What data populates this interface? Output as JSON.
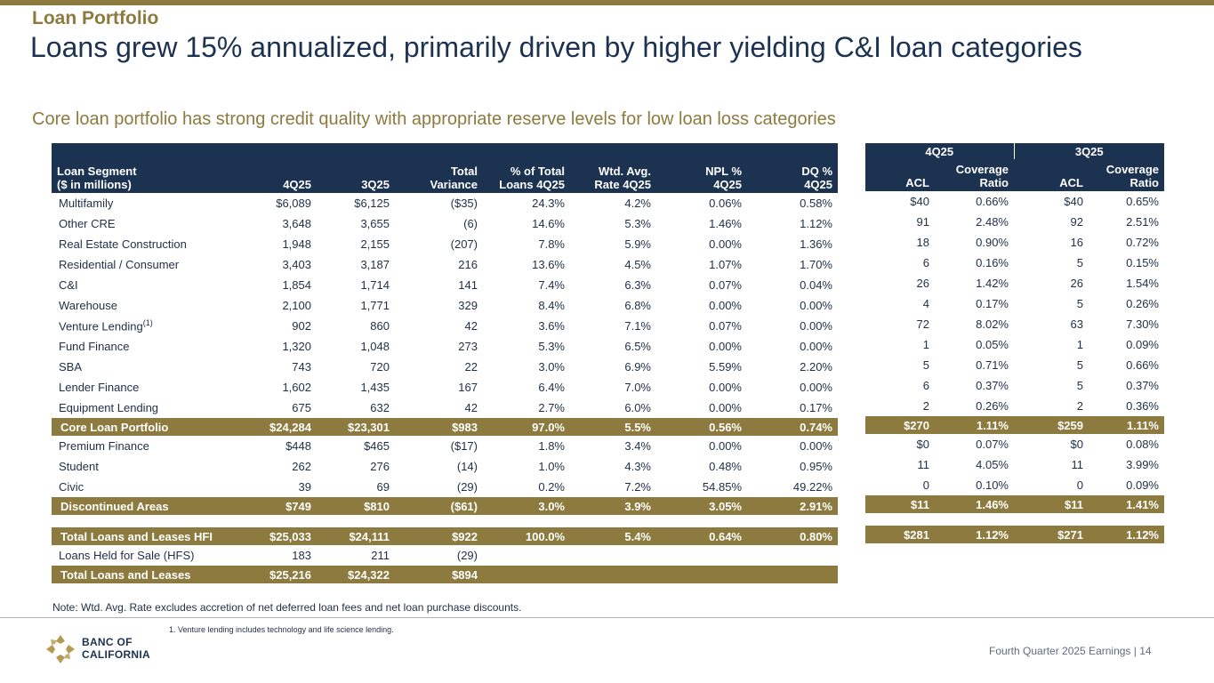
{
  "section_label": "Loan Portfolio",
  "headline": "Loans grew 15% annualized, primarily driven by higher yielding C&I loan categories",
  "subhead": "Core loan portfolio has strong credit quality with appropriate reserve levels for low loan loss categories",
  "left_table": {
    "headers": {
      "segment": [
        "Loan Segment",
        "($ in millions)"
      ],
      "q4": "4Q25",
      "q3": "3Q25",
      "variance": [
        "Total",
        "Variance"
      ],
      "pct_total": [
        "% of Total",
        "Loans 4Q25"
      ],
      "rate": [
        "Wtd. Avg.",
        "Rate 4Q25"
      ],
      "npl": [
        "NPL %",
        "4Q25"
      ],
      "dq": [
        "DQ %",
        "4Q25"
      ]
    },
    "rows": [
      {
        "segment": "Multifamily",
        "q4": "$6,089",
        "q3": "$6,125",
        "variance": "($35)",
        "pct_total": "24.3%",
        "rate": "4.2%",
        "npl": "0.06%",
        "dq": "0.58%"
      },
      {
        "segment": "Other CRE",
        "q4": "3,648",
        "q3": "3,655",
        "variance": "(6)",
        "pct_total": "14.6%",
        "rate": "5.3%",
        "npl": "1.46%",
        "dq": "1.12%"
      },
      {
        "segment": "Real Estate Construction",
        "q4": "1,948",
        "q3": "2,155",
        "variance": "(207)",
        "pct_total": "7.8%",
        "rate": "5.9%",
        "npl": "0.00%",
        "dq": "1.36%"
      },
      {
        "segment": "Residential / Consumer",
        "q4": "3,403",
        "q3": "3,187",
        "variance": "216",
        "pct_total": "13.6%",
        "rate": "4.5%",
        "npl": "1.07%",
        "dq": "1.70%"
      },
      {
        "segment": "C&I",
        "q4": "1,854",
        "q3": "1,714",
        "variance": "141",
        "pct_total": "7.4%",
        "rate": "6.3%",
        "npl": "0.07%",
        "dq": "0.04%"
      },
      {
        "segment": "Warehouse",
        "q4": "2,100",
        "q3": "1,771",
        "variance": "329",
        "pct_total": "8.4%",
        "rate": "6.8%",
        "npl": "0.00%",
        "dq": "0.00%"
      },
      {
        "segment": "Venture Lending",
        "footnote": "(1)",
        "q4": "902",
        "q3": "860",
        "variance": "42",
        "pct_total": "3.6%",
        "rate": "7.1%",
        "npl": "0.07%",
        "dq": "0.00%"
      },
      {
        "segment": "Fund Finance",
        "q4": "1,320",
        "q3": "1,048",
        "variance": "273",
        "pct_total": "5.3%",
        "rate": "6.5%",
        "npl": "0.00%",
        "dq": "0.00%"
      },
      {
        "segment": "SBA",
        "q4": "743",
        "q3": "720",
        "variance": "22",
        "pct_total": "3.0%",
        "rate": "6.9%",
        "npl": "5.59%",
        "dq": "2.20%"
      },
      {
        "segment": "Lender Finance",
        "q4": "1,602",
        "q3": "1,435",
        "variance": "167",
        "pct_total": "6.4%",
        "rate": "7.0%",
        "npl": "0.00%",
        "dq": "0.00%"
      },
      {
        "segment": "Equipment Lending",
        "q4": "675",
        "q3": "632",
        "variance": "42",
        "pct_total": "2.7%",
        "rate": "6.0%",
        "npl": "0.00%",
        "dq": "0.17%"
      },
      {
        "total": true,
        "segment": "Core Loan Portfolio",
        "q4": "$24,284",
        "q3": "$23,301",
        "variance": "$983",
        "pct_total": "97.0%",
        "rate": "5.5%",
        "npl": "0.56%",
        "dq": "0.74%"
      },
      {
        "segment": "Premium Finance",
        "q4": "$448",
        "q3": "$465",
        "variance": "($17)",
        "pct_total": "1.8%",
        "rate": "3.4%",
        "npl": "0.00%",
        "dq": "0.00%"
      },
      {
        "segment": "Student",
        "q4": "262",
        "q3": "276",
        "variance": "(14)",
        "pct_total": "1.0%",
        "rate": "4.3%",
        "npl": "0.48%",
        "dq": "0.95%"
      },
      {
        "segment": "Civic",
        "q4": "39",
        "q3": "69",
        "variance": "(29)",
        "pct_total": "0.2%",
        "rate": "7.2%",
        "npl": "54.85%",
        "dq": "49.22%"
      },
      {
        "total": true,
        "segment": "Discontinued Areas",
        "q4": "$749",
        "q3": "$810",
        "variance": "($61)",
        "pct_total": "3.0%",
        "rate": "3.9%",
        "npl": "3.05%",
        "dq": "2.91%"
      },
      {
        "gap": true
      },
      {
        "total": true,
        "segment": "Total Loans and Leases HFI",
        "q4": "$25,033",
        "q3": "$24,111",
        "variance": "$922",
        "pct_total": "100.0%",
        "rate": "5.4%",
        "npl": "0.64%",
        "dq": "0.80%"
      },
      {
        "segment": "Loans Held for Sale (HFS)",
        "q4": "183",
        "q3": "211",
        "variance": "(29)",
        "pct_total": "",
        "rate": "",
        "npl": "",
        "dq": ""
      },
      {
        "total": true,
        "segment": "Total Loans and Leases",
        "q4": "$25,216",
        "q3": "$24,322",
        "variance": "$894",
        "pct_total": "",
        "rate": "",
        "npl": "",
        "dq": ""
      }
    ]
  },
  "right_table": {
    "group_headers": [
      "4Q25",
      "3Q25"
    ],
    "headers": {
      "acl": "ACL",
      "coverage": [
        "Coverage",
        "Ratio"
      ]
    },
    "rows": [
      {
        "acl_q4": "$40",
        "cov_q4": "0.66%",
        "acl_q3": "$40",
        "cov_q3": "0.65%"
      },
      {
        "acl_q4": "91",
        "cov_q4": "2.48%",
        "acl_q3": "92",
        "cov_q3": "2.51%"
      },
      {
        "acl_q4": "18",
        "cov_q4": "0.90%",
        "acl_q3": "16",
        "cov_q3": "0.72%"
      },
      {
        "acl_q4": "6",
        "cov_q4": "0.16%",
        "acl_q3": "5",
        "cov_q3": "0.15%"
      },
      {
        "acl_q4": "26",
        "cov_q4": "1.42%",
        "acl_q3": "26",
        "cov_q3": "1.54%"
      },
      {
        "acl_q4": "4",
        "cov_q4": "0.17%",
        "acl_q3": "5",
        "cov_q3": "0.26%"
      },
      {
        "acl_q4": "72",
        "cov_q4": "8.02%",
        "acl_q3": "63",
        "cov_q3": "7.30%"
      },
      {
        "acl_q4": "1",
        "cov_q4": "0.05%",
        "acl_q3": "1",
        "cov_q3": "0.09%"
      },
      {
        "acl_q4": "5",
        "cov_q4": "0.71%",
        "acl_q3": "5",
        "cov_q3": "0.66%"
      },
      {
        "acl_q4": "6",
        "cov_q4": "0.37%",
        "acl_q3": "5",
        "cov_q3": "0.37%"
      },
      {
        "acl_q4": "2",
        "cov_q4": "0.26%",
        "acl_q3": "2",
        "cov_q3": "0.36%"
      },
      {
        "total": true,
        "acl_q4": "$270",
        "cov_q4": "1.11%",
        "acl_q3": "$259",
        "cov_q3": "1.11%"
      },
      {
        "acl_q4": "$0",
        "cov_q4": "0.07%",
        "acl_q3": "$0",
        "cov_q3": "0.08%"
      },
      {
        "acl_q4": "11",
        "cov_q4": "4.05%",
        "acl_q3": "11",
        "cov_q3": "3.99%"
      },
      {
        "acl_q4": "0",
        "cov_q4": "0.10%",
        "acl_q3": "0",
        "cov_q3": "0.09%"
      },
      {
        "total": true,
        "acl_q4": "$11",
        "cov_q4": "1.46%",
        "acl_q3": "$11",
        "cov_q3": "1.41%"
      },
      {
        "gap": true
      },
      {
        "total": true,
        "acl_q4": "$281",
        "cov_q4": "1.12%",
        "acl_q3": "$271",
        "cov_q3": "1.12%"
      }
    ]
  },
  "note": "Note: Wtd. Avg. Rate excludes accretion of net deferred loan fees and net loan purchase discounts.",
  "footnote": "1.  Venture lending includes technology and life science lending.",
  "logo_text": [
    "BANC OF",
    "CALIFORNIA"
  ],
  "footer": "Fourth Quarter 2025 Earnings |  14",
  "colors": {
    "navy": "#1c3251",
    "gold": "#8c7a3e"
  }
}
